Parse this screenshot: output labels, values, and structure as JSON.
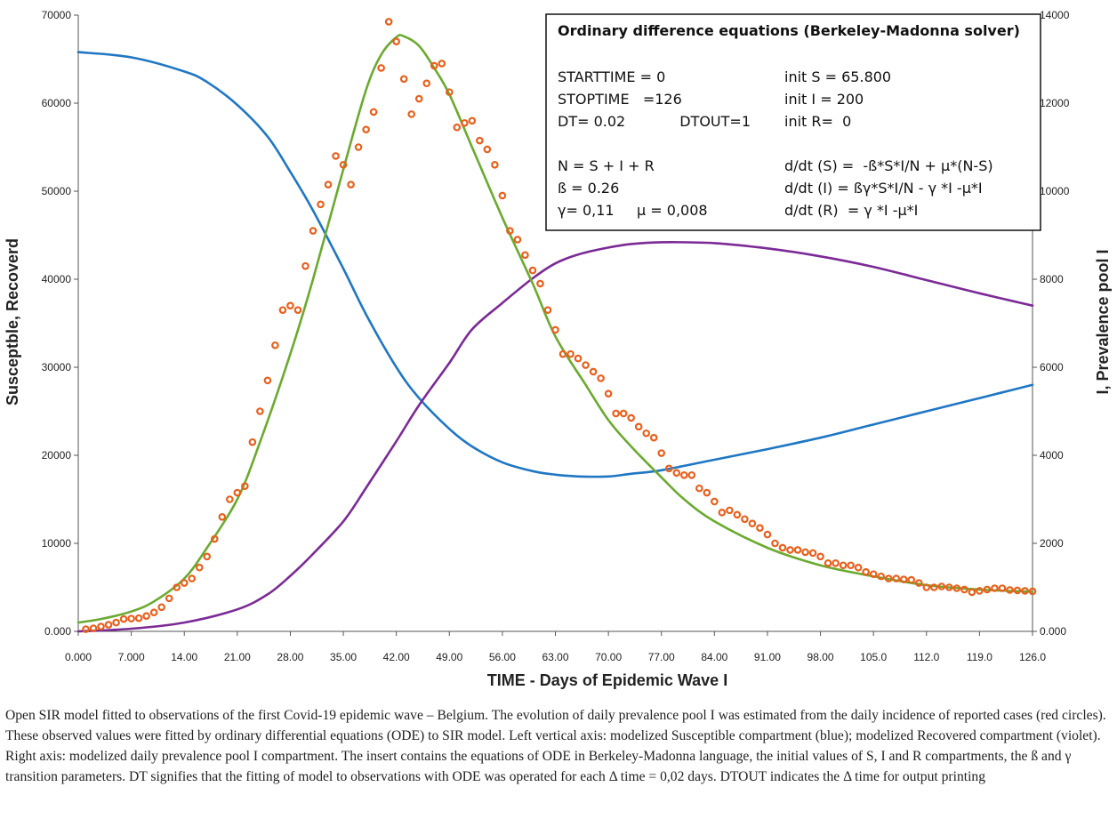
{
  "chart_data": {
    "type": "line",
    "xlabel": "TIME - Days of Epidemic Wave I",
    "ylabel_left": "Susceptble,  Recoverd",
    "ylabel_right": "I,  Prevalence pool I",
    "xlim": [
      0,
      126
    ],
    "ylim_left": [
      0,
      70000
    ],
    "ylim_right": [
      0,
      14000
    ],
    "grid": false,
    "x_ticks": [
      "0.000",
      "7.000",
      "14.00",
      "21.00",
      "28.00",
      "35.00",
      "42.00",
      "49.00",
      "56.00",
      "63.00",
      "70.00",
      "77.00",
      "84.00",
      "91.00",
      "98.00",
      "105.0",
      "112.0",
      "119.0",
      "126.0"
    ],
    "y_left_ticks": [
      "0.000",
      "10000",
      "20000",
      "30000",
      "40000",
      "50000",
      "60000",
      "70000"
    ],
    "y_right_ticks": [
      "0.000",
      "2000",
      "4000",
      "6000",
      "8000",
      "10000",
      "12000",
      "14000"
    ],
    "colors": {
      "susceptible": "#1f77c4",
      "recovered": "#7b2a96",
      "prevalence": "#6aaa2f",
      "observed": "#e8601c"
    },
    "series": [
      {
        "key": "susceptible",
        "axis": "left",
        "x": [
          0,
          7,
          14,
          17,
          21,
          25,
          28,
          31,
          35,
          38,
          42,
          45,
          49,
          52,
          56,
          60,
          63,
          66,
          70,
          73,
          77,
          84,
          91,
          98,
          105,
          112,
          119,
          126
        ],
        "values": [
          65800,
          65200,
          63600,
          62400,
          59800,
          56200,
          52200,
          47800,
          41200,
          36000,
          30000,
          26500,
          23000,
          21000,
          19200,
          18200,
          17800,
          17600,
          17600,
          17900,
          18300,
          19500,
          20700,
          22000,
          23500,
          25000,
          26500,
          28000
        ]
      },
      {
        "key": "recovered",
        "axis": "left",
        "x": [
          0,
          7,
          14,
          21,
          25,
          28,
          31,
          35,
          38,
          42,
          45,
          49,
          52,
          56,
          60,
          63,
          66,
          70,
          73,
          77,
          84,
          91,
          98,
          105,
          112,
          119,
          126
        ],
        "values": [
          0,
          300,
          1000,
          2500,
          4200,
          6300,
          8800,
          12500,
          16300,
          21600,
          25700,
          30500,
          34300,
          37300,
          40100,
          41800,
          42800,
          43600,
          44000,
          44200,
          44100,
          43500,
          42600,
          41400,
          39900,
          38400,
          37000
        ]
      },
      {
        "key": "prevalence",
        "axis": "right",
        "x": [
          0,
          3,
          7,
          10,
          14,
          17,
          21,
          24,
          28,
          31,
          35,
          38,
          40,
          42,
          43,
          45,
          47,
          49,
          52,
          56,
          60,
          63,
          67,
          70,
          73,
          77,
          80,
          84,
          91,
          98,
          105,
          112,
          119,
          126
        ],
        "values": [
          200,
          280,
          450,
          680,
          1200,
          1900,
          3000,
          4300,
          6300,
          8000,
          10500,
          12300,
          13100,
          13500,
          13520,
          13300,
          12800,
          12200,
          11000,
          9400,
          7900,
          6700,
          5600,
          4800,
          4200,
          3500,
          3000,
          2500,
          1900,
          1500,
          1250,
          1050,
          950,
          900
        ]
      },
      {
        "key": "observed",
        "axis": "right",
        "x": [
          1,
          2,
          3,
          4,
          5,
          6,
          7,
          8,
          9,
          10,
          11,
          12,
          13,
          14,
          15,
          16,
          17,
          18,
          19,
          20,
          21,
          22,
          23,
          24,
          25,
          26,
          27,
          28,
          29,
          30,
          31,
          32,
          33,
          34,
          35,
          36,
          37,
          38,
          39,
          40,
          41,
          42,
          43,
          44,
          45,
          46,
          47,
          48,
          49,
          50,
          51,
          52,
          53,
          54,
          55,
          56,
          57,
          58,
          59,
          60,
          61,
          62,
          63,
          64,
          65,
          66,
          67,
          68,
          69,
          70,
          71,
          72,
          73,
          74,
          75,
          76,
          77,
          78,
          79,
          80,
          81,
          82,
          83,
          84,
          85,
          86,
          87,
          88,
          89,
          90,
          91,
          92,
          93,
          94,
          95,
          96,
          97,
          98,
          99,
          100,
          101,
          102,
          103,
          104,
          105,
          106,
          107,
          108,
          109,
          110,
          111,
          112,
          113,
          114,
          115,
          116,
          117,
          118,
          119,
          120,
          121,
          122,
          123,
          124,
          125,
          126
        ],
        "values": [
          50,
          70,
          110,
          150,
          200,
          280,
          290,
          300,
          350,
          430,
          550,
          750,
          1000,
          1100,
          1200,
          1450,
          1700,
          2100,
          2600,
          3000,
          3150,
          3300,
          4300,
          5000,
          5700,
          6500,
          7300,
          7400,
          7300,
          8300,
          9100,
          9700,
          10150,
          10800,
          10600,
          10150,
          11000,
          11400,
          11800,
          12800,
          13850,
          13400,
          12550,
          11750,
          12100,
          12450,
          12850,
          12900,
          12250,
          11450,
          11550,
          11600,
          11150,
          10950,
          10600,
          9900,
          9100,
          8900,
          8550,
          8200,
          7900,
          7300,
          6850,
          6300,
          6300,
          6200,
          6050,
          5900,
          5750,
          5400,
          4950,
          4950,
          4850,
          4650,
          4500,
          4400,
          4050,
          3700,
          3600,
          3550,
          3550,
          3250,
          3150,
          2950,
          2700,
          2750,
          2650,
          2550,
          2450,
          2350,
          2200,
          2000,
          1900,
          1850,
          1850,
          1800,
          1780,
          1700,
          1550,
          1550,
          1500,
          1500,
          1450,
          1350,
          1300,
          1250,
          1200,
          1200,
          1180,
          1170,
          1100,
          1000,
          1000,
          1020,
          1000,
          980,
          950,
          890,
          920,
          950,
          980,
          980,
          940,
          930,
          920,
          910
        ]
      }
    ]
  },
  "insert": {
    "title": "Ordinary difference equations (Berkeley-Madonna solver)",
    "left_lines": [
      "STARTTIME = 0",
      "STOPTIME   =126",
      "DT= 0.02            DTOUT=1",
      "",
      "N = S + I + R",
      "ß = 0.26",
      "γ= 0,11     μ = 0,008"
    ],
    "right_lines": [
      "init S = 65.800",
      "init I = 200",
      "init R=  0",
      "",
      "d/dt (S) =  -ß*S*I/N + μ*(N-S)",
      "d/dt (I) = ßγ*S*I/N - γ *I -μ*I",
      "d/dt (R)  = γ *I -μ*I"
    ]
  },
  "caption": "Open SIR model fitted to observations of the first Covid-19 epidemic wave – Belgium. The evolution of daily prevalence pool I was estimated from the daily incidence of reported cases (red circles). These observed values were fitted by ordinary differential equations (ODE) to SIR model. Left vertical axis: modelized Susceptible compartment (blue); modelized Recovered compartment (violet). Right axis: modelized daily prevalence pool I compartment. The insert contains the equations of ODE in Berkeley-Madonna language, the initial values of S, I and R compartments, the ß and γ transition parameters. DT signifies that the fitting of model to observations with ODE was operated for each Δ time = 0,02 days. DTOUT indicates the Δ time for output printing"
}
